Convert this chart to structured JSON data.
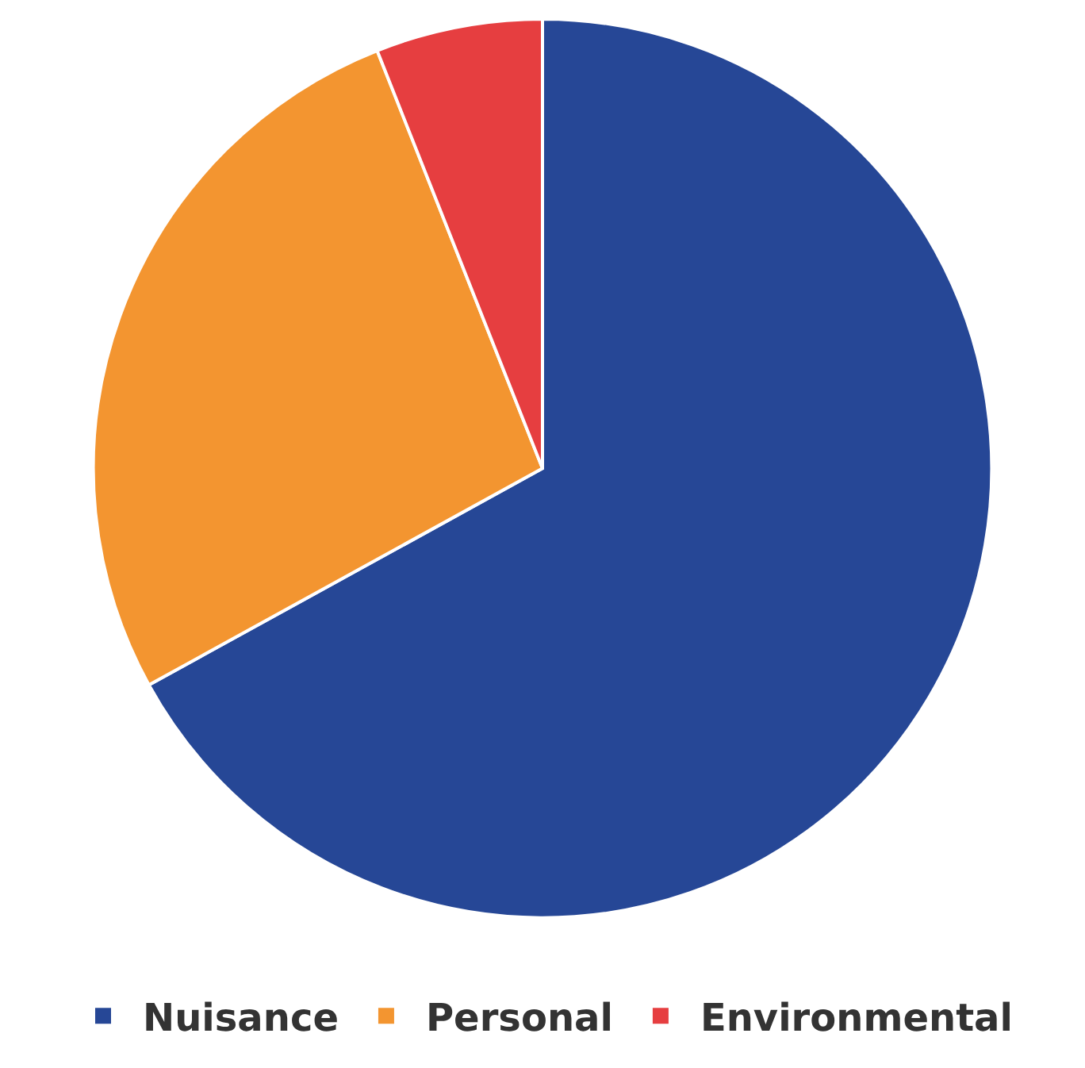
{
  "chart_data": {
    "type": "pie",
    "categories": [
      "Nuisance",
      "Personal",
      "Environmental"
    ],
    "values": [
      67,
      27,
      6
    ],
    "colors": [
      "#264796",
      "#f39530",
      "#e63e40"
    ],
    "legend": "bottom"
  }
}
